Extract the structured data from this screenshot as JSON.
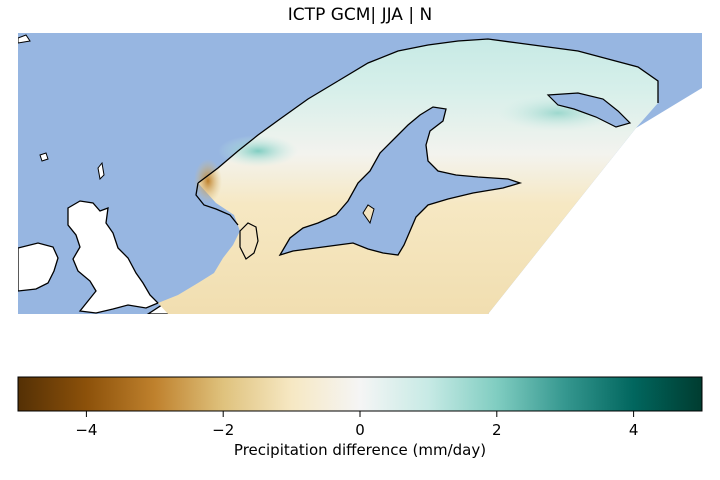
{
  "title": "ICTP GCM| JJA | N",
  "colorbar": {
    "label": "Precipitation difference (mm/day)",
    "vmin": -5,
    "vmax": 5,
    "ticks": [
      {
        "value": -4,
        "label": "−4"
      },
      {
        "value": -2,
        "label": "−2"
      },
      {
        "value": 0,
        "label": "0"
      },
      {
        "value": 2,
        "label": "2"
      },
      {
        "value": 4,
        "label": "4"
      }
    ],
    "colormap": "BrBG",
    "stops": [
      "#543005",
      "#8c510a",
      "#bf812d",
      "#dfc27d",
      "#f6e8c3",
      "#f5f5f5",
      "#c7eae5",
      "#80cdc1",
      "#35978f",
      "#01665e",
      "#003c30"
    ]
  },
  "map": {
    "region": "Northern Europe / Scandinavia",
    "ocean_color": "#97b6e1",
    "land_color": "#ffffff"
  }
}
